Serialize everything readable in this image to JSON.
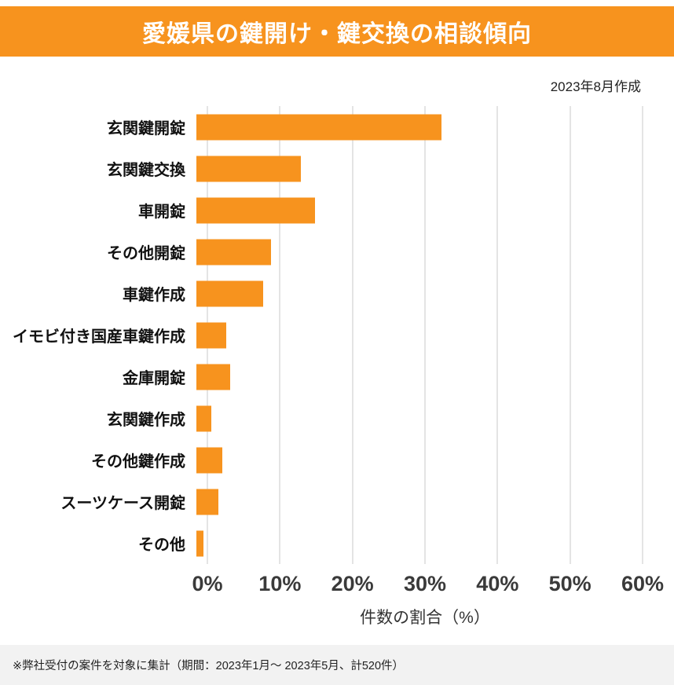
{
  "header": {
    "title": "愛媛県の鍵開け・鍵交換の相談傾向",
    "background_color": "#F7931E",
    "text_color": "#ffffff"
  },
  "meta": {
    "created_label": "2023年8月作成"
  },
  "chart_data": {
    "type": "bar",
    "orientation": "horizontal",
    "title": "愛媛県の鍵開け・鍵交換の相談傾向",
    "categories": [
      "玄関鍵開錠",
      "玄関鍵交換",
      "車開錠",
      "その他開錠",
      "車鍵作成",
      "イモビ付き国産車鍵作成",
      "金庫開錠",
      "玄関鍵作成",
      "その他鍵作成",
      "スーツケース開錠",
      "その他"
    ],
    "values": [
      33,
      14,
      16,
      10,
      9,
      4,
      4.5,
      2,
      3.5,
      3,
      1
    ],
    "unit": "%",
    "xlabel": "件数の割合（%）",
    "xlim": [
      0,
      60
    ],
    "xticks": [
      0,
      10,
      20,
      30,
      40,
      50,
      60
    ],
    "xtick_labels": [
      "0%",
      "10%",
      "20%",
      "30%",
      "40%",
      "50%",
      "60%"
    ],
    "bar_color": "#F7931E",
    "grid": true,
    "legend": false
  },
  "footer": {
    "note": "※弊社受付の案件を対象に集計（期間：2023年1月～ 2023年5月、計520件）"
  }
}
